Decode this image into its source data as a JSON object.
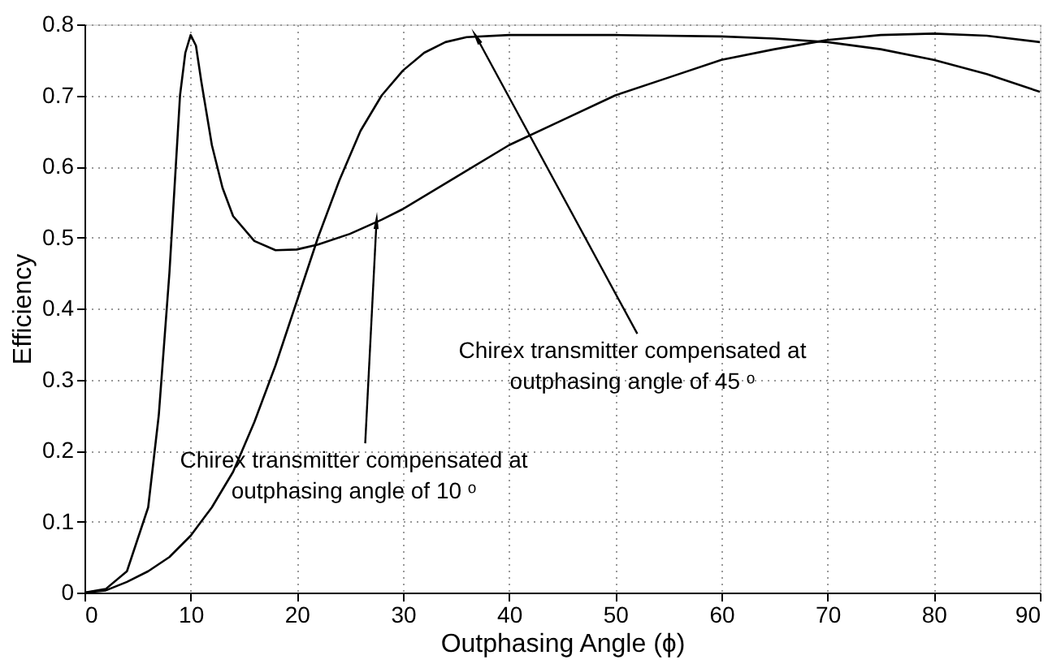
{
  "chart_data": {
    "type": "line",
    "xlabel": "Outphasing Angle (ϕ)",
    "ylabel": "Efficiency",
    "xlim": [
      0,
      90
    ],
    "xticks": [
      0,
      10,
      20,
      30,
      40,
      50,
      60,
      70,
      80,
      90
    ],
    "ylim": [
      0,
      0.8
    ],
    "yticks": [
      0,
      0.1,
      0.2,
      0.3,
      0.4,
      0.5,
      0.6,
      0.7,
      0.8
    ],
    "grid": true,
    "line_style": "solid",
    "marker": "none",
    "series": [
      {
        "color": "#000000",
        "x": [
          0,
          2,
          4,
          6,
          7,
          8,
          9,
          9.5,
          10,
          10.5,
          11,
          12,
          13,
          14,
          16,
          18,
          20,
          22,
          25,
          28,
          30,
          35,
          40,
          45,
          50,
          55,
          60,
          65,
          70,
          75,
          80,
          85,
          90
        ],
        "values": [
          0,
          0.005,
          0.03,
          0.12,
          0.25,
          0.45,
          0.7,
          0.76,
          0.785,
          0.77,
          0.72,
          0.63,
          0.57,
          0.53,
          0.495,
          0.482,
          0.483,
          0.49,
          0.505,
          0.525,
          0.54,
          0.585,
          0.63,
          0.665,
          0.7,
          0.725,
          0.75,
          0.765,
          0.778,
          0.785,
          0.787,
          0.784,
          0.775
        ]
      },
      {
        "color": "#000000",
        "x": [
          0,
          2,
          4,
          6,
          8,
          10,
          12,
          14,
          16,
          18,
          20,
          22,
          24,
          26,
          28,
          30,
          32,
          34,
          36,
          40,
          50,
          60,
          65,
          70,
          75,
          80,
          85,
          90
        ],
        "values": [
          0,
          0.003,
          0.015,
          0.03,
          0.05,
          0.08,
          0.12,
          0.17,
          0.24,
          0.32,
          0.41,
          0.5,
          0.58,
          0.65,
          0.7,
          0.735,
          0.76,
          0.775,
          0.782,
          0.785,
          0.785,
          0.783,
          0.78,
          0.775,
          0.765,
          0.75,
          0.73,
          0.705
        ]
      }
    ],
    "annotations": [
      {
        "text": "Chirex transmitter compensated at\noutphasing angle of 10 ᵒ",
        "x": 27.5,
        "y": 0.52
      },
      {
        "text": "Chirex transmitter compensated at\noutphasing angle of 45 ᵒ",
        "x": 37,
        "y": 0.78
      }
    ]
  }
}
